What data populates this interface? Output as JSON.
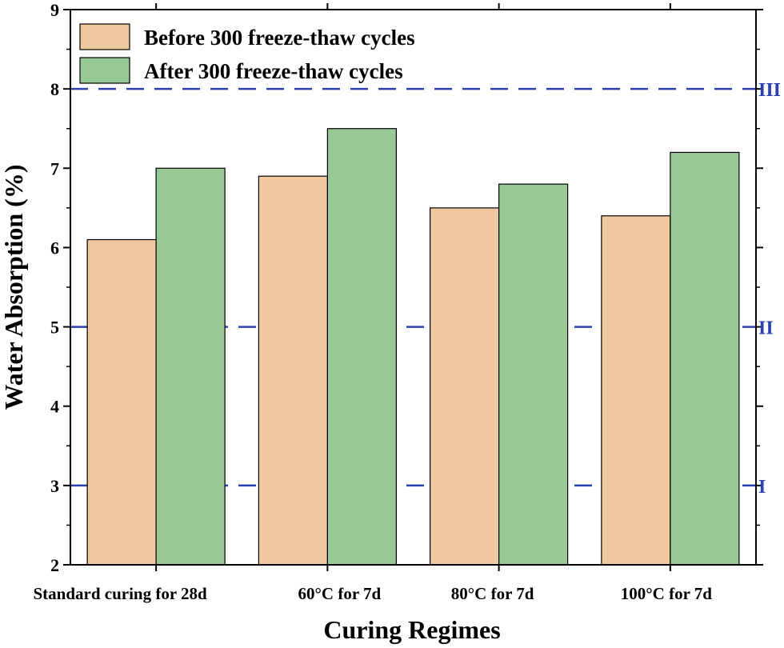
{
  "colors": {
    "before": "#f0c8a0",
    "after": "#98c896",
    "ref_line": "#2b40b0",
    "axis": "#000000"
  },
  "chart_data": {
    "type": "bar",
    "title": "",
    "xlabel": "Curing Regimes",
    "ylabel": "Water Absorption (%)",
    "ylim": [
      2,
      9
    ],
    "yticks": [
      2,
      3,
      4,
      5,
      6,
      7,
      8,
      9
    ],
    "categories": [
      "Standard curing for 28d",
      "60°C for 7d",
      "80°C for 7d",
      "100°C for 7d"
    ],
    "series": [
      {
        "name": "Before 300 freeze-thaw cycles",
        "values": [
          6.1,
          6.9,
          6.5,
          6.4
        ]
      },
      {
        "name": "After 300 freeze-thaw cycles",
        "values": [
          7.0,
          7.5,
          6.8,
          7.2
        ]
      }
    ],
    "reference_lines": [
      {
        "value": 3,
        "label": "I"
      },
      {
        "value": 5,
        "label": "II"
      },
      {
        "value": 8,
        "label": "III"
      }
    ],
    "legend_position": "top-left",
    "grid": false
  }
}
